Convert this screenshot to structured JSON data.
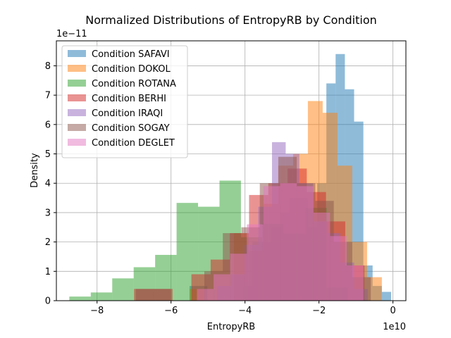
{
  "chart_data": {
    "type": "histogram",
    "title": "Normalized Distributions of EntropyRB by Condition",
    "xlabel": "EntropyRB",
    "ylabel": "Density",
    "x_scale_label": "1e10",
    "y_scale_label": "1e−11",
    "x_scale": 10000000000.0,
    "y_scale": 1e-11,
    "xlim": [
      -9.1,
      0.35
    ],
    "ylim": [
      0,
      8.85
    ],
    "xticks": [
      -8,
      -6,
      -4,
      -2,
      0
    ],
    "xtick_labels": [
      "−8",
      "−6",
      "−4",
      "−2",
      "0"
    ],
    "yticks": [
      0,
      1,
      2,
      3,
      4,
      5,
      6,
      7,
      8
    ],
    "ytick_labels": [
      "0",
      "1",
      "2",
      "3",
      "4",
      "5",
      "6",
      "7",
      "8"
    ],
    "grid": true,
    "legend_position": "upper-left",
    "alpha": 0.5,
    "series": [
      {
        "name": "Condition SAFAVI",
        "color": "#1f77b4",
        "bins": [
          {
            "x0": -5.5,
            "x1": -5.26,
            "y": 0.5
          },
          {
            "x0": -5.26,
            "x1": -5.02,
            "y": 0.5
          },
          {
            "x0": -4.05,
            "x1": -3.8,
            "y": 0.5
          },
          {
            "x0": -3.8,
            "x1": -3.55,
            "y": 2.0
          },
          {
            "x0": -3.55,
            "x1": -3.3,
            "y": 2.0
          },
          {
            "x0": -3.3,
            "x1": -3.05,
            "y": 2.5
          },
          {
            "x0": -3.05,
            "x1": -2.8,
            "y": 3.0
          },
          {
            "x0": -2.8,
            "x1": -2.55,
            "y": 3.5
          },
          {
            "x0": -2.55,
            "x1": -2.3,
            "y": 3.5
          },
          {
            "x0": -2.3,
            "x1": -2.05,
            "y": 2.5
          },
          {
            "x0": -2.05,
            "x1": -1.8,
            "y": 4.0
          },
          {
            "x0": -1.8,
            "x1": -1.55,
            "y": 7.4
          },
          {
            "x0": -1.55,
            "x1": -1.3,
            "y": 8.4
          },
          {
            "x0": -1.3,
            "x1": -1.05,
            "y": 7.2
          },
          {
            "x0": -1.05,
            "x1": -0.8,
            "y": 6.1
          },
          {
            "x0": -0.8,
            "x1": -0.55,
            "y": 1.2
          },
          {
            "x0": -0.55,
            "x1": -0.3,
            "y": 0.5
          },
          {
            "x0": -0.3,
            "x1": -0.05,
            "y": 0.3
          }
        ]
      },
      {
        "name": "Condition DOKOL",
        "color": "#ff7f0e",
        "bins": [
          {
            "x0": -5.5,
            "x1": -5.1,
            "y": 0.4
          },
          {
            "x0": -4.3,
            "x1": -3.9,
            "y": 2.3
          },
          {
            "x0": -3.9,
            "x1": -3.5,
            "y": 1.7
          },
          {
            "x0": -3.5,
            "x1": -3.1,
            "y": 3.3
          },
          {
            "x0": -3.1,
            "x1": -2.7,
            "y": 4.6
          },
          {
            "x0": -2.7,
            "x1": -2.3,
            "y": 5.0
          },
          {
            "x0": -2.3,
            "x1": -1.9,
            "y": 6.8
          },
          {
            "x0": -1.9,
            "x1": -1.5,
            "y": 6.4
          },
          {
            "x0": -1.5,
            "x1": -1.1,
            "y": 4.6
          },
          {
            "x0": -1.1,
            "x1": -0.7,
            "y": 2.0
          },
          {
            "x0": -0.7,
            "x1": -0.3,
            "y": 0.8
          }
        ]
      },
      {
        "name": "Condition ROTANA",
        "color": "#2ca02c",
        "bins": [
          {
            "x0": -8.75,
            "x1": -8.17,
            "y": 0.14
          },
          {
            "x0": -8.17,
            "x1": -7.59,
            "y": 0.28
          },
          {
            "x0": -7.59,
            "x1": -7.01,
            "y": 0.76
          },
          {
            "x0": -7.01,
            "x1": -6.43,
            "y": 1.14
          },
          {
            "x0": -6.43,
            "x1": -5.85,
            "y": 1.56
          },
          {
            "x0": -5.85,
            "x1": -5.27,
            "y": 3.33
          },
          {
            "x0": -5.27,
            "x1": -4.69,
            "y": 3.2
          },
          {
            "x0": -4.69,
            "x1": -4.11,
            "y": 4.09
          },
          {
            "x0": -4.11,
            "x1": -3.53,
            "y": 2.16
          },
          {
            "x0": -3.53,
            "x1": -2.95,
            "y": 2.62
          },
          {
            "x0": -2.95,
            "x1": -2.37,
            "y": 2.29
          },
          {
            "x0": -2.37,
            "x1": -1.79,
            "y": 3.16
          },
          {
            "x0": -1.79,
            "x1": -1.21,
            "y": 0.45
          }
        ]
      },
      {
        "name": "Condition BERHI",
        "color": "#d62728",
        "bins": [
          {
            "x0": -7.0,
            "x1": -6.48,
            "y": 0.4
          },
          {
            "x0": -6.48,
            "x1": -5.96,
            "y": 0.4
          },
          {
            "x0": -5.45,
            "x1": -4.93,
            "y": 0.9
          },
          {
            "x0": -4.93,
            "x1": -4.41,
            "y": 1.4
          },
          {
            "x0": -4.41,
            "x1": -3.89,
            "y": 2.3
          },
          {
            "x0": -3.89,
            "x1": -3.37,
            "y": 3.6
          },
          {
            "x0": -3.37,
            "x1": -2.85,
            "y": 4.0
          },
          {
            "x0": -2.85,
            "x1": -2.33,
            "y": 4.5
          },
          {
            "x0": -2.33,
            "x1": -1.81,
            "y": 3.7
          },
          {
            "x0": -1.81,
            "x1": -1.29,
            "y": 2.7
          },
          {
            "x0": -1.29,
            "x1": -0.77,
            "y": 1.2
          }
        ]
      },
      {
        "name": "Condition IRAQI",
        "color": "#9467bd",
        "bins": [
          {
            "x0": -4.75,
            "x1": -4.38,
            "y": 0.5
          },
          {
            "x0": -4.38,
            "x1": -4.01,
            "y": 0.9
          },
          {
            "x0": -4.01,
            "x1": -3.64,
            "y": 1.9
          },
          {
            "x0": -3.64,
            "x1": -3.27,
            "y": 3.2
          },
          {
            "x0": -3.27,
            "x1": -2.9,
            "y": 5.4
          },
          {
            "x0": -2.9,
            "x1": -2.53,
            "y": 5.0
          },
          {
            "x0": -2.53,
            "x1": -2.16,
            "y": 4.0
          },
          {
            "x0": -2.16,
            "x1": -1.79,
            "y": 2.7
          },
          {
            "x0": -1.79,
            "x1": -1.42,
            "y": 2.3
          },
          {
            "x0": -1.42,
            "x1": -1.05,
            "y": 1.3
          },
          {
            "x0": -1.05,
            "x1": -0.68,
            "y": 0.4
          }
        ]
      },
      {
        "name": "Condition SOGAY",
        "color": "#8c564b",
        "bins": [
          {
            "x0": -6.95,
            "x1": -6.48,
            "y": 0.4
          },
          {
            "x0": -6.48,
            "x1": -6.01,
            "y": 0.4
          },
          {
            "x0": -5.1,
            "x1": -4.6,
            "y": 1.0
          },
          {
            "x0": -4.6,
            "x1": -4.1,
            "y": 2.3
          },
          {
            "x0": -4.1,
            "x1": -3.6,
            "y": 2.5
          },
          {
            "x0": -3.6,
            "x1": -3.1,
            "y": 4.0
          },
          {
            "x0": -3.1,
            "x1": -2.6,
            "y": 4.9
          },
          {
            "x0": -2.6,
            "x1": -2.1,
            "y": 4.0
          },
          {
            "x0": -2.1,
            "x1": -1.6,
            "y": 3.4
          },
          {
            "x0": -1.6,
            "x1": -1.1,
            "y": 2.0
          },
          {
            "x0": -1.1,
            "x1": -0.6,
            "y": 0.8
          }
        ]
      },
      {
        "name": "Condition DEGLET",
        "color": "#e377c2",
        "bins": [
          {
            "x0": -5.3,
            "x1": -4.85,
            "y": 0.4
          },
          {
            "x0": -4.85,
            "x1": -4.4,
            "y": 0.9
          },
          {
            "x0": -4.4,
            "x1": -3.95,
            "y": 1.6
          },
          {
            "x0": -3.95,
            "x1": -3.5,
            "y": 2.6
          },
          {
            "x0": -3.5,
            "x1": -3.05,
            "y": 3.9
          },
          {
            "x0": -3.05,
            "x1": -2.6,
            "y": 4.0
          },
          {
            "x0": -2.6,
            "x1": -2.15,
            "y": 3.9
          },
          {
            "x0": -2.15,
            "x1": -1.7,
            "y": 3.0
          },
          {
            "x0": -1.7,
            "x1": -1.25,
            "y": 2.2
          },
          {
            "x0": -1.25,
            "x1": -0.8,
            "y": 1.2
          }
        ]
      }
    ]
  }
}
